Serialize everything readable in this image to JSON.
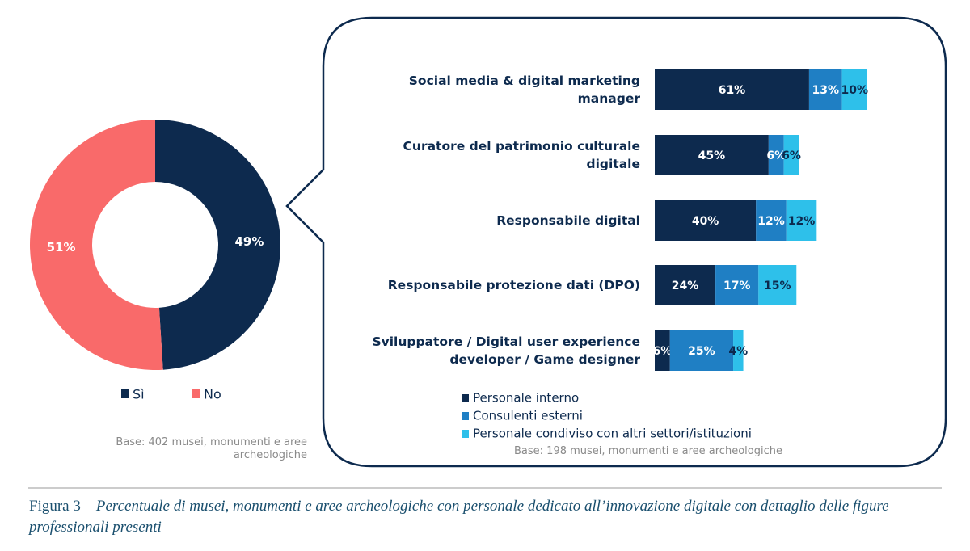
{
  "chart_data": [
    {
      "type": "donut",
      "categories": [
        "Sì",
        "No"
      ],
      "values": [
        49,
        51
      ],
      "value_labels": [
        "49%",
        "51%"
      ],
      "colors": [
        "#0d2a4e",
        "#f96a6a"
      ],
      "note": "Base: 402 musei, monumenti e aree archeologiche"
    },
    {
      "type": "stacked_bar",
      "orientation": "horizontal",
      "categories": [
        "Social media & digital marketing manager",
        "Curatore del patrimonio culturale digitale",
        "Responsabile digital",
        "Responsabile protezione dati (DPO)",
        "Sviluppatore / Digital user experience developer / Game designer"
      ],
      "series": [
        {
          "name": "Personale interno",
          "color": "#0d2a4e",
          "values": [
            61,
            45,
            40,
            24,
            6
          ],
          "value_labels": [
            "61%",
            "45%",
            "40%",
            "24%",
            "6%"
          ]
        },
        {
          "name": "Consulenti esterni",
          "color": "#1f7fc4",
          "values": [
            13,
            6,
            12,
            17,
            25
          ],
          "value_labels": [
            "13%",
            "6%",
            "12%",
            "17%",
            "25%"
          ]
        },
        {
          "name": "Personale condiviso con altri settori/istituzioni",
          "color": "#2ec0ea",
          "values": [
            10,
            6,
            12,
            15,
            4
          ],
          "value_labels": [
            "10%",
            "6%",
            "12%",
            "15%",
            "4%"
          ]
        }
      ],
      "note": "Base: 198 musei, monumenti e aree archeologiche"
    }
  ],
  "caption": {
    "label": "Figura 3",
    "text": "– Percentuale di musei, monumenti e aree archeologiche con personale dedicato all’innovazione digitale con dettaglio delle figure professionali presenti"
  }
}
